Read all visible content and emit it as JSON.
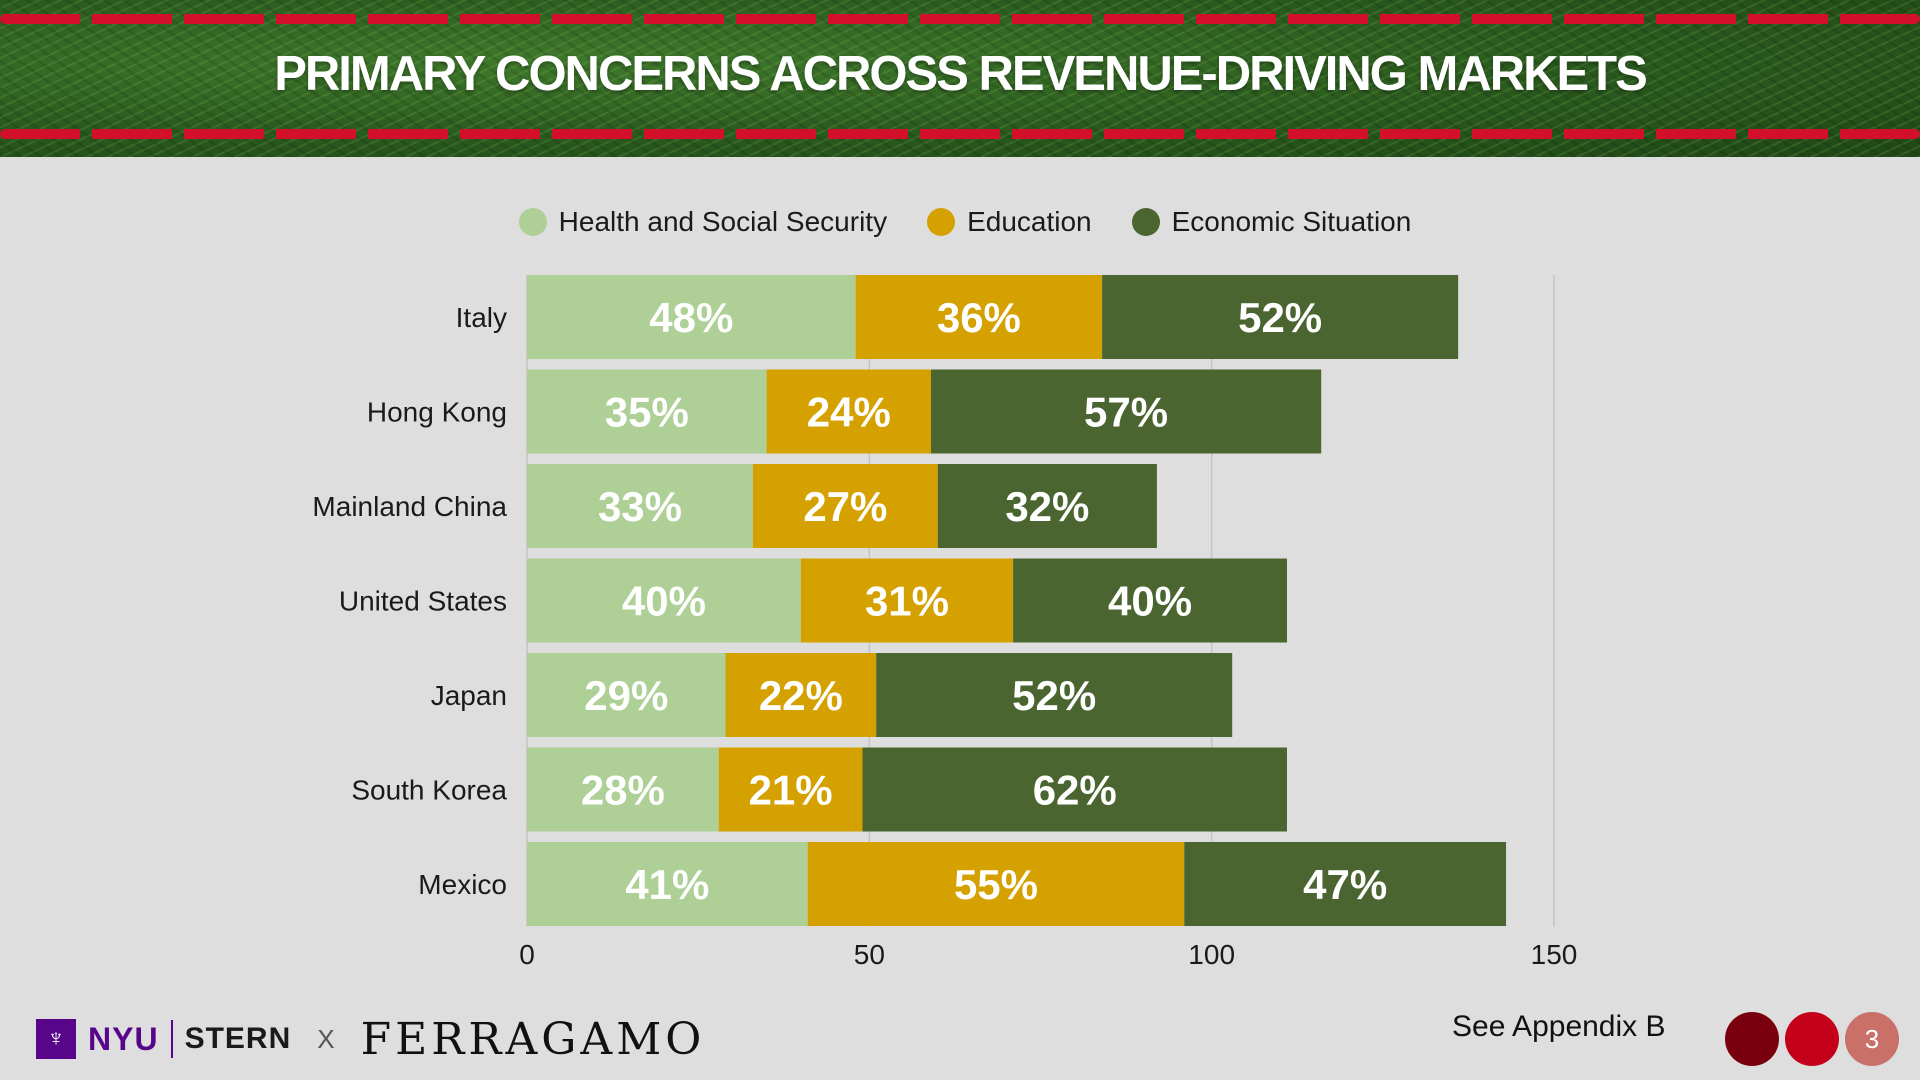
{
  "header": {
    "title": "PRIMARY CONCERNS ACROSS REVENUE-DRIVING MARKETS"
  },
  "legend": {
    "items": [
      {
        "label": "Health and Social Security",
        "color": "#aecf95"
      },
      {
        "label": "Education",
        "color": "#d4a100"
      },
      {
        "label": "Economic Situation",
        "color": "#4b6530"
      }
    ]
  },
  "chart_data": {
    "type": "bar",
    "orientation": "horizontal",
    "stacked": true,
    "title": "PRIMARY CONCERNS ACROSS REVENUE-DRIVING MARKETS",
    "categories": [
      "Italy",
      "Hong Kong",
      "Mainland China",
      "United States",
      "Japan",
      "South Korea",
      "Mexico"
    ],
    "series": [
      {
        "name": "Health and Social Security",
        "color": "#aecf95",
        "values": [
          48,
          35,
          33,
          40,
          29,
          28,
          41
        ],
        "labels": [
          "48%",
          "35%",
          "33%",
          "40%",
          "29%",
          "28%",
          "41%"
        ]
      },
      {
        "name": "Education",
        "color": "#d4a100",
        "values": [
          36,
          24,
          27,
          31,
          22,
          21,
          55
        ],
        "labels": [
          "36%",
          "24%",
          "27%",
          "31%",
          "22%",
          "21%",
          "55%"
        ]
      },
      {
        "name": "Economic Situation",
        "color": "#4b6530",
        "values": [
          52,
          57,
          32,
          40,
          52,
          62,
          47
        ],
        "labels": [
          "52%",
          "57%",
          "32%",
          "40%",
          "52%",
          "62%",
          "47%"
        ]
      }
    ],
    "xlim": [
      0,
      150
    ],
    "xticks": [
      0,
      50,
      100,
      150
    ],
    "xtick_labels": [
      "0",
      "50",
      "100",
      "150"
    ],
    "grid": true,
    "legend_position": "top-center"
  },
  "footer": {
    "torch_glyph": "♆",
    "nyu": "NYU",
    "stern": "STERN",
    "x": "X",
    "brand": "FERRAGAMO",
    "appendix": "See Appendix B",
    "page_number": "3",
    "circle_colors": [
      "#7a0010",
      "#c4001a",
      "#c97068"
    ]
  }
}
